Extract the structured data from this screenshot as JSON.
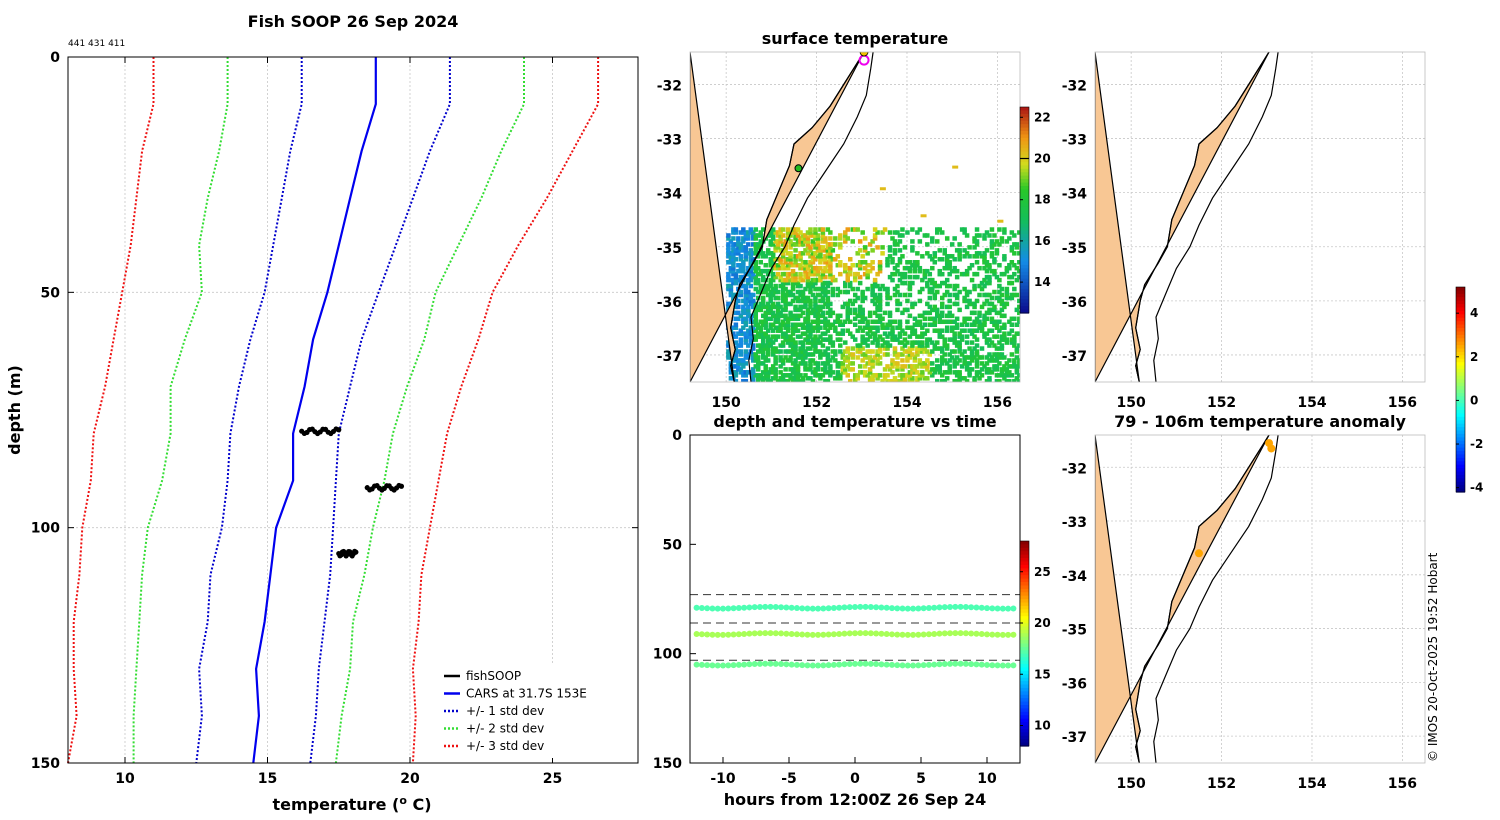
{
  "colors": {
    "land": "#f8c794",
    "coast": "#000000",
    "grid": "#c8c8c8",
    "cars": "#0000ee",
    "std1": "#0000cc",
    "std2": "#33dd33",
    "std3": "#ee1111",
    "fish": "#000000"
  },
  "chart_data": [
    {
      "type": "line",
      "title": "Fish SOOP 26 Sep 2024",
      "subtitle": "441 431 411",
      "xlabel": "temperature (",
      "xlabel_sup": "o",
      "xlabel_end": " C)",
      "ylabel": "depth (m)",
      "xlim": [
        8,
        28
      ],
      "ylim": [
        150,
        0
      ],
      "xticks": [
        10,
        15,
        20,
        25
      ],
      "yticks": [
        0,
        50,
        100,
        150
      ],
      "depths": [
        0,
        10,
        20,
        30,
        40,
        50,
        60,
        70,
        80,
        90,
        100,
        110,
        120,
        130,
        140,
        150
      ],
      "series": [
        {
          "name": "CARS at 31.7S 153E",
          "style": "solid",
          "color": "#0000ee",
          "values": [
            18.8,
            18.8,
            18.3,
            17.9,
            17.5,
            17.1,
            16.6,
            16.3,
            15.9,
            15.9,
            15.3,
            15.1,
            14.9,
            14.6,
            14.7,
            14.5
          ]
        },
        {
          "name": "+/- 1 std dev (upper)",
          "style": "dotted",
          "color": "#0000cc",
          "values": [
            21.4,
            21.4,
            20.7,
            20.1,
            19.5,
            18.9,
            18.3,
            17.9,
            17.5,
            17.4,
            17.3,
            17.2,
            17.0,
            16.8,
            16.7,
            16.5
          ]
        },
        {
          "name": "+/- 1 std dev (lower)",
          "style": "dotted",
          "color": "#0000cc",
          "values": [
            16.2,
            16.2,
            15.8,
            15.5,
            15.2,
            14.9,
            14.4,
            14.0,
            13.7,
            13.6,
            13.4,
            13.0,
            12.9,
            12.6,
            12.7,
            12.5
          ]
        },
        {
          "name": "+/- 2 std dev (upper)",
          "style": "dotted",
          "color": "#33dd33",
          "values": [
            24.0,
            24.0,
            23.2,
            22.5,
            21.7,
            20.9,
            20.5,
            19.9,
            19.4,
            19.1,
            18.7,
            18.4,
            18.0,
            17.9,
            17.6,
            17.4
          ]
        },
        {
          "name": "+/- 2 std dev (lower)",
          "style": "dotted",
          "color": "#33dd33",
          "values": [
            13.6,
            13.6,
            13.3,
            12.9,
            12.6,
            12.7,
            12.1,
            11.6,
            11.6,
            11.3,
            10.8,
            10.6,
            10.5,
            10.4,
            10.3,
            10.3
          ]
        },
        {
          "name": "+/- 3 std dev (upper)",
          "style": "dotted",
          "color": "#ee1111",
          "values": [
            26.6,
            26.6,
            25.7,
            24.8,
            23.8,
            22.9,
            22.4,
            21.8,
            21.3,
            21.0,
            20.7,
            20.4,
            20.3,
            20.1,
            20.2,
            20.1
          ]
        },
        {
          "name": "+/- 3 std dev (lower)",
          "style": "dotted",
          "color": "#ee1111",
          "values": [
            11.0,
            11.0,
            10.6,
            10.4,
            10.2,
            9.9,
            9.6,
            9.3,
            8.9,
            8.8,
            8.5,
            8.4,
            8.2,
            8.2,
            8.3,
            8.0
          ]
        }
      ],
      "fishsoop": [
        {
          "depth": 79.5,
          "t_start": 16.2,
          "t_end": 17.5
        },
        {
          "depth": 91.5,
          "t_start": 18.5,
          "t_end": 19.7
        },
        {
          "depth": 105.5,
          "t_start": 17.5,
          "t_end": 18.1
        }
      ],
      "legend": [
        "fishSOOP",
        "CARS at 31.7S 153E",
        "+/- 1 std dev",
        "+/- 2 std dev",
        "+/- 3 std dev"
      ],
      "legend_position": "bottom-right"
    },
    {
      "type": "heatmap",
      "title": "surface temperature",
      "xlim": [
        149.2,
        156.5
      ],
      "ylim": [
        -37.5,
        -31.4
      ],
      "xticks": [
        150,
        152,
        154,
        156
      ],
      "yticks": [
        -32,
        -33,
        -34,
        -35,
        -36,
        -37
      ],
      "colorbar": {
        "min": 12.5,
        "max": 22.5,
        "ticks": [
          14,
          16,
          18,
          20,
          22
        ],
        "marker": 20
      }
    },
    {
      "type": "line",
      "title": "depth and temperature vs time",
      "xlabel": "hours from 12:00Z 26 Sep 24",
      "xlim": [
        -12.5,
        12.5
      ],
      "ylim": [
        150,
        0
      ],
      "xticks": [
        -10,
        -5,
        0,
        5,
        10
      ],
      "xtick_labels": [
        "-10",
        "-5",
        "0",
        "5",
        "10"
      ],
      "yticks": [
        0,
        50,
        100,
        150
      ],
      "dashed_depths": [
        73,
        86,
        103
      ],
      "traces": [
        {
          "depth": 79,
          "temp": 17.0
        },
        {
          "depth": 91,
          "temp": 18.8
        },
        {
          "depth": 105,
          "temp": 17.6
        }
      ],
      "colorbar": {
        "min": 8,
        "max": 28,
        "ticks": [
          10,
          15,
          20,
          25
        ]
      }
    },
    {
      "type": "heatmap",
      "title": "",
      "xlim": [
        149.2,
        156.5
      ],
      "ylim": [
        -37.5,
        -31.4
      ],
      "xticks": [
        150,
        152,
        154,
        156
      ],
      "yticks": [
        -32,
        -33,
        -34,
        -35,
        -36,
        -37
      ],
      "colorbar": {
        "min": -4.2,
        "max": 5.2,
        "ticks": [
          4,
          2,
          0,
          -2,
          -4
        ],
        "tick_labels": [
          "4",
          "2",
          "0",
          "-2",
          "-4"
        ]
      }
    },
    {
      "type": "scatter",
      "title": "79 - 106m temperature anomaly",
      "xlim": [
        149.2,
        156.5
      ],
      "ylim": [
        -37.5,
        -31.4
      ],
      "xticks": [
        150,
        152,
        154,
        156
      ],
      "yticks": [
        -32,
        -33,
        -34,
        -35,
        -36,
        -37
      ],
      "points": [
        {
          "lon": 153.05,
          "lat": -31.55,
          "anom": 2.5
        },
        {
          "lon": 153.1,
          "lat": -31.65,
          "anom": 2.5
        },
        {
          "lon": 151.5,
          "lat": -33.6,
          "anom": 2.5
        }
      ]
    }
  ],
  "credit": "© IMOS 20-Oct-2025 19:52 Hobart"
}
